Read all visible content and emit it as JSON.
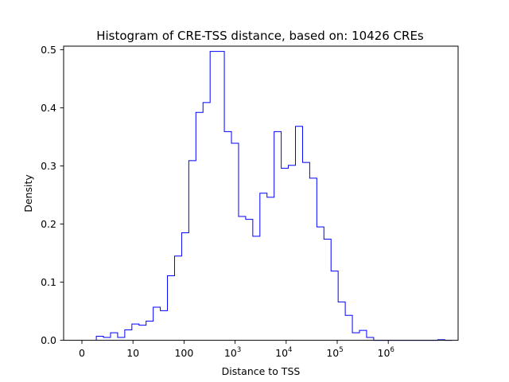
{
  "chart_data": {
    "type": "bar",
    "subtype": "histogram-step",
    "title": "Histogram of CRE-TSS distance, based on: 10426 CREs",
    "xlabel": "Distance to TSS",
    "ylabel": "Density",
    "ylim": [
      0,
      0.5
    ],
    "x_scale": "log10(distance)",
    "x_ticks": [
      {
        "value": 0,
        "base": "0",
        "exp": ""
      },
      {
        "value": 1,
        "base": "10",
        "exp": ""
      },
      {
        "value": 2,
        "base": "100",
        "exp": ""
      },
      {
        "value": 3,
        "base": "10",
        "exp": "3"
      },
      {
        "value": 4,
        "base": "10",
        "exp": "4"
      },
      {
        "value": 5,
        "base": "10",
        "exp": "5"
      },
      {
        "value": 6,
        "base": "10",
        "exp": "6"
      }
    ],
    "y_ticks": [
      "0.0",
      "0.1",
      "0.2",
      "0.3",
      "0.4",
      "0.5"
    ],
    "y_tick_values": [
      0.0,
      0.1,
      0.2,
      0.3,
      0.4,
      0.5
    ],
    "bin_width": 0.1393,
    "bins_start": 0.282,
    "density": [
      0.007,
      0.005,
      0.013,
      0.005,
      0.018,
      0.028,
      0.026,
      0.033,
      0.057,
      0.051,
      0.111,
      0.145,
      0.185,
      0.309,
      0.392,
      0.409,
      0.497,
      0.497,
      0.359,
      0.339,
      0.213,
      0.208,
      0.179,
      0.253,
      0.246,
      0.359,
      0.296,
      0.301,
      0.368,
      0.306,
      0.279,
      0.195,
      0.174,
      0.119,
      0.066,
      0.043,
      0.013,
      0.017,
      0.005,
      0.0,
      0.0,
      0.0,
      0.0,
      0.0,
      0.0,
      0.0,
      0.0,
      0.0,
      0.001,
      0.0
    ],
    "grid": false,
    "colors": {
      "line": "#0000ff",
      "axes": "#000000",
      "background": "#ffffff"
    }
  }
}
